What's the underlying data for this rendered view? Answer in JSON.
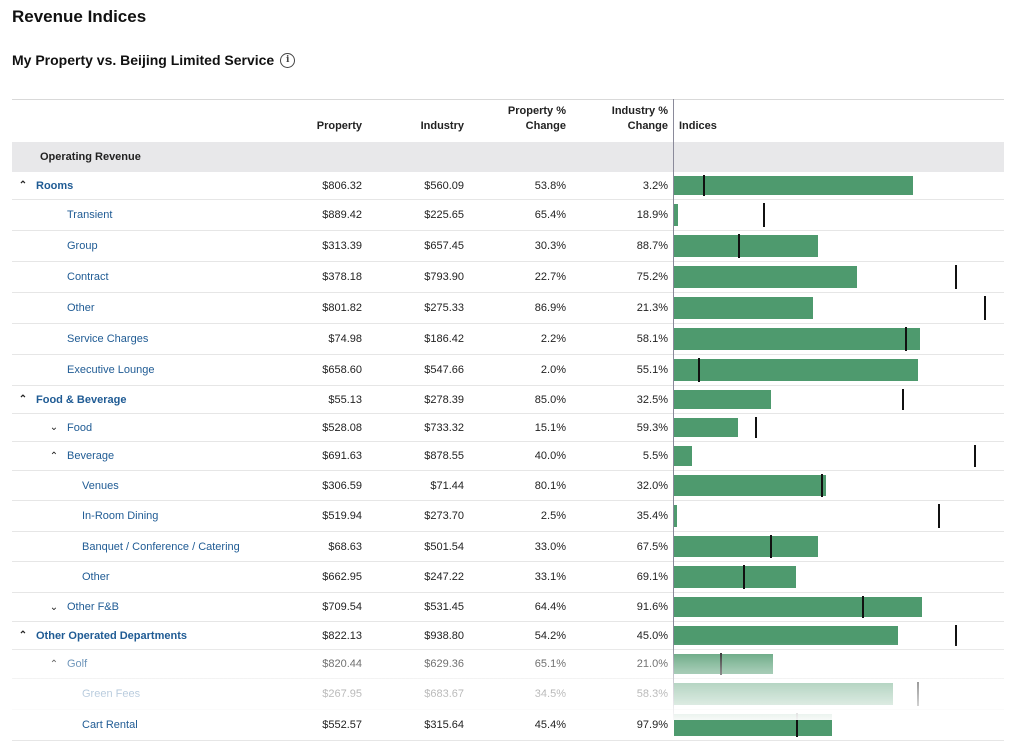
{
  "page": {
    "title": "Revenue Indices",
    "subtitle": "My Property vs. Beijing Limited Service",
    "info_icon": "info-icon"
  },
  "columns": {
    "property": "Property",
    "industry": "Industry",
    "property_pct_line1": "Property %",
    "property_pct_line2": "Change",
    "industry_pct_line1": "Industry %",
    "industry_pct_line2": "Change",
    "indices": "Indices"
  },
  "section": {
    "label": "Operating Revenue"
  },
  "colors": {
    "bar": "#4e9a6e",
    "marker": "#111111",
    "link": "#1f5b94",
    "section_bg": "#e8e8ea"
  },
  "rows": [
    {
      "label": "Rooms",
      "level": 0,
      "chevron": "up",
      "bold": true,
      "property": "$806.32",
      "industry": "$560.09",
      "property_pct": "53.8%",
      "industry_pct": "3.2%",
      "bar_fraction": 0.725,
      "marker_fraction": 0.087
    },
    {
      "label": "Transient",
      "level": 1,
      "chevron": "",
      "bold": false,
      "property": "$889.42",
      "industry": "$225.65",
      "property_pct": "65.4%",
      "industry_pct": "18.9%",
      "bar_fraction": 0.012,
      "marker_fraction": 0.27
    },
    {
      "label": "Group",
      "level": 1,
      "chevron": "",
      "bold": false,
      "property": "$313.39",
      "industry": "$657.45",
      "property_pct": "30.3%",
      "industry_pct": "88.7%",
      "bar_fraction": 0.435,
      "marker_fraction": 0.195
    },
    {
      "label": "Contract",
      "level": 1,
      "chevron": "",
      "bold": false,
      "property": "$378.18",
      "industry": "$793.90",
      "property_pct": "22.7%",
      "industry_pct": "75.2%",
      "bar_fraction": 0.555,
      "marker_fraction": 0.85
    },
    {
      "label": "Other",
      "level": 1,
      "chevron": "",
      "bold": false,
      "property": "$801.82",
      "industry": "$275.33",
      "property_pct": "86.9%",
      "industry_pct": "21.3%",
      "bar_fraction": 0.42,
      "marker_fraction": 0.94
    },
    {
      "label": "Service Charges",
      "level": 1,
      "chevron": "",
      "bold": false,
      "property": "$74.98",
      "industry": "$186.42",
      "property_pct": "2.2%",
      "industry_pct": "58.1%",
      "bar_fraction": 0.745,
      "marker_fraction": 0.7
    },
    {
      "label": "Executive Lounge",
      "level": 1,
      "chevron": "",
      "bold": false,
      "property": "$658.60",
      "industry": "$547.66",
      "property_pct": "2.0%",
      "industry_pct": "55.1%",
      "bar_fraction": 0.74,
      "marker_fraction": 0.073
    },
    {
      "label": "Food & Beverage",
      "level": 0,
      "chevron": "up",
      "bold": true,
      "property": "$55.13",
      "industry": "$278.39",
      "property_pct": "85.0%",
      "industry_pct": "32.5%",
      "bar_fraction": 0.295,
      "marker_fraction": 0.69
    },
    {
      "label": "Food",
      "level": 1,
      "chevron": "down",
      "bold": false,
      "property": "$528.08",
      "industry": "$733.32",
      "property_pct": "15.1%",
      "industry_pct": "59.3%",
      "bar_fraction": 0.195,
      "marker_fraction": 0.245
    },
    {
      "label": "Beverage",
      "level": 1,
      "chevron": "up",
      "bold": false,
      "property": "$691.63",
      "industry": "$878.55",
      "property_pct": "40.0%",
      "industry_pct": "5.5%",
      "bar_fraction": 0.055,
      "marker_fraction": 0.91
    },
    {
      "label": "Venues",
      "level": 2,
      "chevron": "",
      "bold": false,
      "property": "$306.59",
      "industry": "$71.44",
      "property_pct": "80.1%",
      "industry_pct": "32.0%",
      "bar_fraction": 0.46,
      "marker_fraction": 0.445
    },
    {
      "label": "In-Room Dining",
      "level": 2,
      "chevron": "",
      "bold": false,
      "property": "$519.94",
      "industry": "$273.70",
      "property_pct": "2.5%",
      "industry_pct": "35.4%",
      "bar_fraction": 0.01,
      "marker_fraction": 0.8
    },
    {
      "label": "Banquet / Conference / Catering",
      "level": 2,
      "chevron": "",
      "bold": false,
      "property": "$68.63",
      "industry": "$501.54",
      "property_pct": "33.0%",
      "industry_pct": "67.5%",
      "bar_fraction": 0.435,
      "marker_fraction": 0.29
    },
    {
      "label": "Other",
      "level": 2,
      "chevron": "",
      "bold": false,
      "property": "$662.95",
      "industry": "$247.22",
      "property_pct": "33.1%",
      "industry_pct": "69.1%",
      "bar_fraction": 0.37,
      "marker_fraction": 0.21
    },
    {
      "label": "Other F&B",
      "level": 1,
      "chevron": "down",
      "bold": false,
      "property": "$709.54",
      "industry": "$531.45",
      "property_pct": "64.4%",
      "industry_pct": "91.6%",
      "bar_fraction": 0.75,
      "marker_fraction": 0.57
    },
    {
      "label": "Other Operated Departments",
      "level": 0,
      "chevron": "up",
      "bold": true,
      "property": "$822.13",
      "industry": "$938.80",
      "property_pct": "54.2%",
      "industry_pct": "45.0%",
      "bar_fraction": 0.68,
      "marker_fraction": 0.85
    },
    {
      "label": "Golf",
      "level": 1,
      "chevron": "up",
      "bold": false,
      "property": "$820.44",
      "industry": "$629.36",
      "property_pct": "65.1%",
      "industry_pct": "21.0%",
      "bar_fraction": 0.3,
      "marker_fraction": 0.14
    },
    {
      "label": "Green Fees",
      "level": 2,
      "chevron": "",
      "bold": false,
      "property": "$267.95",
      "industry": "$683.67",
      "property_pct": "34.5%",
      "industry_pct": "58.3%",
      "bar_fraction": 0.665,
      "marker_fraction": 0.735
    },
    {
      "label": "Cart Rental",
      "level": 2,
      "chevron": "",
      "bold": false,
      "property": "$552.57",
      "industry": "$315.64",
      "property_pct": "45.4%",
      "industry_pct": "97.9%",
      "bar_fraction": 0.48,
      "marker_fraction": 0.37
    }
  ]
}
